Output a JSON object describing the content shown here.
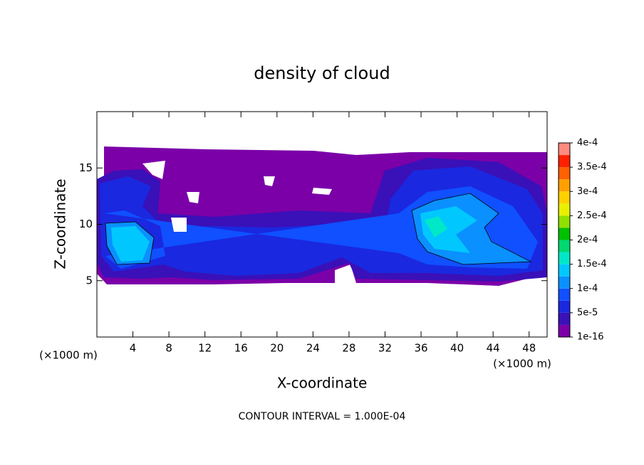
{
  "chart_data": {
    "type": "contour",
    "title": "density of cloud",
    "x_label": "X-coordinate",
    "y_label": "Z-coordinate",
    "x_unit": "(×1000 m)",
    "y_unit": "(×1000 m)",
    "xlim": [
      0,
      50
    ],
    "xticks": [
      4,
      8,
      12,
      16,
      20,
      24,
      28,
      32,
      36,
      40,
      44,
      48
    ],
    "ylim": [
      0,
      20
    ],
    "yticks": [
      5,
      10,
      15
    ],
    "zlim": [
      1e-16,
      0.0004
    ],
    "zticks": [
      {
        "value": 1e-16,
        "label": "1e-16"
      },
      {
        "value": 5e-05,
        "label": "5e-5"
      },
      {
        "value": 0.0001,
        "label": "1e-4"
      },
      {
        "value": 0.00015,
        "label": "1.5e-4"
      },
      {
        "value": 0.0002,
        "label": "2e-4"
      },
      {
        "value": 0.00025,
        "label": "2.5e-4"
      },
      {
        "value": 0.0003,
        "label": "3e-4"
      },
      {
        "value": 0.00035,
        "label": "3.5e-4"
      },
      {
        "value": 0.0004,
        "label": "4e-4"
      }
    ],
    "colors": [
      "#7b00a8",
      "#3a10b8",
      "#1a28e0",
      "#1050ff",
      "#0a90ff",
      "#00c8ff",
      "#00e8c8",
      "#00d870",
      "#00c000",
      "#90e000",
      "#e8f000",
      "#ffd000",
      "#ffa000",
      "#ff6000",
      "#ff2000",
      "#ff8a80"
    ],
    "contour_note": "CONTOUR INTERVAL = 1.000E-04"
  }
}
